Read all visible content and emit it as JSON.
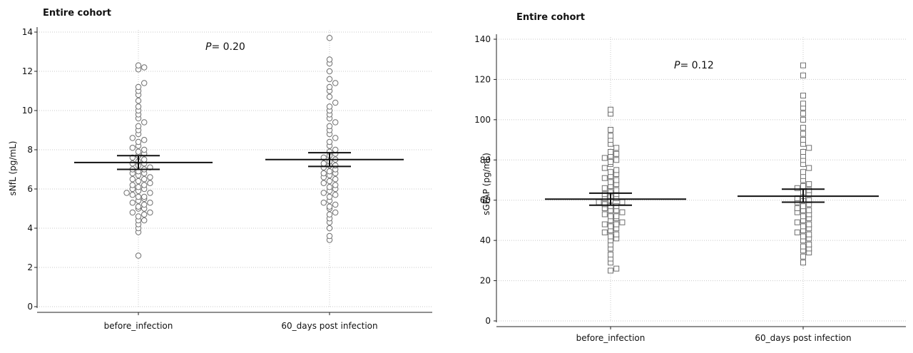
{
  "chart_data": [
    {
      "type": "scatter",
      "title": "Entire cohort",
      "xlabel": "",
      "ylabel": "sNfL (pg/mL)",
      "ylim": [
        0,
        14
      ],
      "yticks": [
        0,
        2,
        4,
        6,
        8,
        10,
        12,
        14
      ],
      "categories": [
        "before_infection",
        "60_days post infection"
      ],
      "annotation": {
        "prefix": "P",
        "text": "= 0.20"
      },
      "grid": true,
      "marker": "circle",
      "summary": [
        {
          "category": "before_infection",
          "mean": 7.35,
          "ci_low": 7.0,
          "ci_high": 7.7
        },
        {
          "category": "60_days post infection",
          "mean": 7.5,
          "ci_low": 7.15,
          "ci_high": 7.85
        }
      ],
      "series": [
        {
          "category": "before_infection",
          "values": [
            2.6,
            3.8,
            4.0,
            4.2,
            4.4,
            4.4,
            4.6,
            4.7,
            4.8,
            4.8,
            5.0,
            5.0,
            5.1,
            5.2,
            5.3,
            5.3,
            5.4,
            5.5,
            5.6,
            5.6,
            5.7,
            5.8,
            5.8,
            5.9,
            6.0,
            6.0,
            6.1,
            6.2,
            6.2,
            6.3,
            6.4,
            6.5,
            6.5,
            6.6,
            6.7,
            6.8,
            6.8,
            6.9,
            7.0,
            7.0,
            7.1,
            7.2,
            7.3,
            7.3,
            7.4,
            7.5,
            7.6,
            7.7,
            7.8,
            7.9,
            8.0,
            8.1,
            8.2,
            8.4,
            8.5,
            8.6,
            8.8,
            9.0,
            9.2,
            9.4,
            9.6,
            9.8,
            10.0,
            10.2,
            10.5,
            10.8,
            11.0,
            11.2,
            11.4,
            12.1,
            12.2,
            12.3
          ]
        },
        {
          "category": "60_days post infection",
          "values": [
            3.4,
            3.6,
            4.0,
            4.3,
            4.5,
            4.7,
            4.8,
            5.0,
            5.1,
            5.2,
            5.3,
            5.4,
            5.6,
            5.7,
            5.8,
            5.9,
            6.0,
            6.1,
            6.2,
            6.3,
            6.4,
            6.5,
            6.6,
            6.7,
            6.8,
            6.8,
            6.9,
            7.0,
            7.1,
            7.2,
            7.2,
            7.3,
            7.4,
            7.5,
            7.6,
            7.7,
            7.8,
            7.9,
            8.0,
            8.2,
            8.4,
            8.6,
            8.8,
            9.0,
            9.2,
            9.4,
            9.6,
            9.8,
            10.0,
            10.2,
            10.4,
            10.7,
            11.0,
            11.2,
            11.4,
            11.6,
            12.0,
            12.4,
            12.6,
            13.7
          ]
        }
      ]
    },
    {
      "type": "scatter",
      "title": "Entire cohort",
      "xlabel": "",
      "ylabel": "sGFAP (pg/mL)",
      "ylim": [
        0,
        140
      ],
      "yticks": [
        0,
        20,
        40,
        60,
        80,
        100,
        120,
        140
      ],
      "categories": [
        "before_infection",
        "60_days post infection"
      ],
      "annotation": {
        "prefix": "P",
        "text": "= 0.12"
      },
      "grid": true,
      "marker": "square",
      "summary": [
        {
          "category": "before_infection",
          "mean": 60.5,
          "ci_low": 57.5,
          "ci_high": 63.5
        },
        {
          "category": "60_days post infection",
          "mean": 62.0,
          "ci_low": 59.0,
          "ci_high": 65.5
        }
      ],
      "series": [
        {
          "category": "before_infection",
          "values": [
            25,
            26,
            29,
            31,
            33,
            36,
            38,
            40,
            41,
            42,
            43,
            44,
            45,
            46,
            47,
            48,
            48,
            49,
            50,
            51,
            52,
            52,
            53,
            54,
            55,
            55,
            56,
            57,
            57,
            58,
            59,
            59,
            60,
            61,
            61,
            62,
            63,
            63,
            64,
            65,
            66,
            67,
            68,
            69,
            70,
            71,
            72,
            73,
            74,
            75,
            76,
            78,
            79,
            80,
            81,
            82,
            83,
            84,
            86,
            88,
            90,
            92,
            95,
            103,
            105
          ]
        },
        {
          "category": "60_days post infection",
          "values": [
            29,
            32,
            34,
            35,
            36,
            37,
            38,
            40,
            41,
            42,
            43,
            44,
            45,
            46,
            47,
            48,
            49,
            50,
            51,
            52,
            53,
            54,
            55,
            55,
            56,
            57,
            58,
            59,
            60,
            60,
            61,
            62,
            63,
            64,
            65,
            66,
            67,
            68,
            70,
            72,
            74,
            76,
            78,
            80,
            82,
            84,
            86,
            88,
            90,
            93,
            96,
            100,
            103,
            106,
            108,
            112,
            122,
            127
          ]
        }
      ]
    }
  ]
}
